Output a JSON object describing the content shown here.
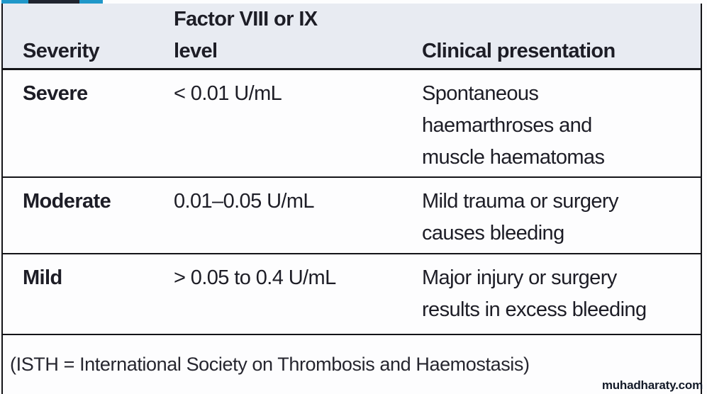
{
  "table": {
    "header": {
      "severity": "Severity",
      "factor_level": "Factor VIII or IX\nlevel",
      "clinical": "Clinical presentation"
    },
    "rows": [
      {
        "severity": "Severe",
        "level": "< 0.01 U/mL",
        "presentation": "Spontaneous\nhaemarthroses and\nmuscle haematomas"
      },
      {
        "severity": "Moderate",
        "level": "0.01–0.05 U/mL",
        "presentation": "Mild trauma or surgery\ncauses bleeding"
      },
      {
        "severity": "Mild",
        "level": "> 0.05 to 0.4 U/mL",
        "presentation": "Major injury or surgery\nresults in excess bleeding"
      }
    ],
    "footnote": "(ISTH = International Society on Thrombosis and Haemostasis)"
  },
  "watermark": "muhadharaty.com",
  "colors": {
    "accent_teal": "#1f97c9",
    "strip_black": "#20242f",
    "header_bg": "#e8ebf2",
    "border": "#141418",
    "text": "#1d1d26",
    "body_bg": "#fdfdfe",
    "watermark": "#131a28"
  }
}
